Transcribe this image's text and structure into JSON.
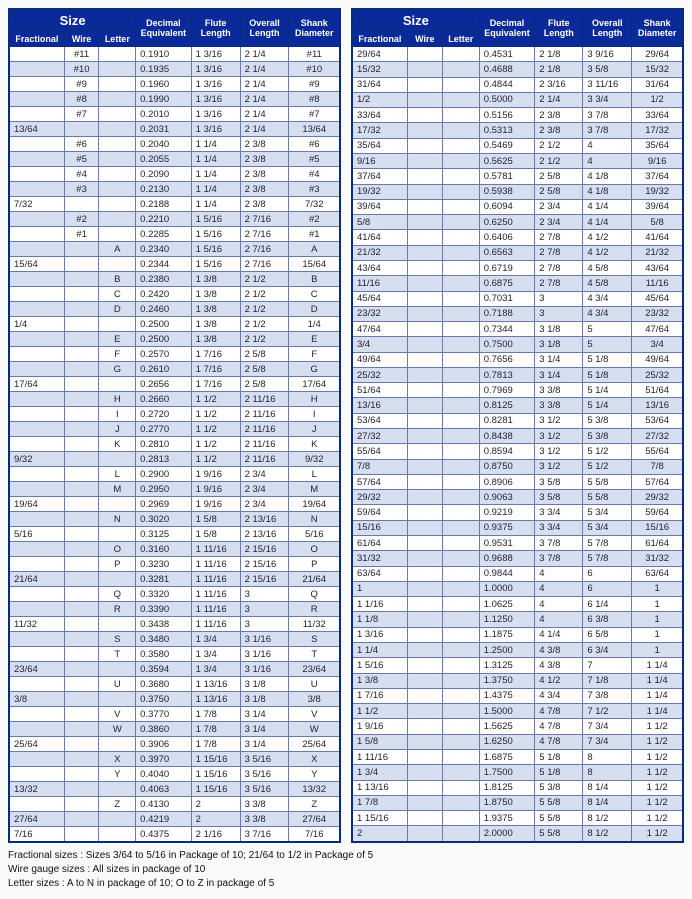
{
  "headers": {
    "size": "Size",
    "fractional": "Fractional",
    "wire": "Wire",
    "letter": "Letter",
    "decimal": "Decimal Equivalent",
    "flute": "Flute Length",
    "overall": "Overall Length",
    "shank": "Shank Diameter"
  },
  "footnotes": [
    "Fractional sizes : Sizes 3/64 to 5/16 in Package of 10; 21/64 to 1/2 in Package of 5",
    "Wire gauge sizes : All sizes in package of 10",
    "Letter sizes : A to N in package of 10; O to Z in package of 5"
  ],
  "left_rows": [
    {
      "frac": "",
      "wire": "#11",
      "let": "",
      "dec": "0.1910",
      "fl": "1 3/16",
      "ol": "2 1/4",
      "sh": "#11"
    },
    {
      "frac": "",
      "wire": "#10",
      "let": "",
      "dec": "0.1935",
      "fl": "1 3/16",
      "ol": "2 1/4",
      "sh": "#10"
    },
    {
      "frac": "",
      "wire": "#9",
      "let": "",
      "dec": "0.1960",
      "fl": "1 3/16",
      "ol": "2 1/4",
      "sh": "#9"
    },
    {
      "frac": "",
      "wire": "#8",
      "let": "",
      "dec": "0.1990",
      "fl": "1 3/16",
      "ol": "2 1/4",
      "sh": "#8"
    },
    {
      "frac": "",
      "wire": "#7",
      "let": "",
      "dec": "0.2010",
      "fl": "1 3/16",
      "ol": "2 1/4",
      "sh": "#7"
    },
    {
      "frac": "13/64",
      "wire": "",
      "let": "",
      "dec": "0.2031",
      "fl": "1 3/16",
      "ol": "2 1/4",
      "sh": "13/64"
    },
    {
      "frac": "",
      "wire": "#6",
      "let": "",
      "dec": "0.2040",
      "fl": "1 1/4",
      "ol": "2 3/8",
      "sh": "#6"
    },
    {
      "frac": "",
      "wire": "#5",
      "let": "",
      "dec": "0.2055",
      "fl": "1 1/4",
      "ol": "2 3/8",
      "sh": "#5"
    },
    {
      "frac": "",
      "wire": "#4",
      "let": "",
      "dec": "0.2090",
      "fl": "1 1/4",
      "ol": "2 3/8",
      "sh": "#4"
    },
    {
      "frac": "",
      "wire": "#3",
      "let": "",
      "dec": "0.2130",
      "fl": "1 1/4",
      "ol": "2 3/8",
      "sh": "#3"
    },
    {
      "frac": "7/32",
      "wire": "",
      "let": "",
      "dec": "0.2188",
      "fl": "1 1/4",
      "ol": "2 3/8",
      "sh": "7/32"
    },
    {
      "frac": "",
      "wire": "#2",
      "let": "",
      "dec": "0.2210",
      "fl": "1 5/16",
      "ol": "2 7/16",
      "sh": "#2"
    },
    {
      "frac": "",
      "wire": "#1",
      "let": "",
      "dec": "0.2285",
      "fl": "1 5/16",
      "ol": "2 7/16",
      "sh": "#1"
    },
    {
      "frac": "",
      "wire": "",
      "let": "A",
      "dec": "0.2340",
      "fl": "1 5/16",
      "ol": "2 7/16",
      "sh": "A"
    },
    {
      "frac": "15/64",
      "wire": "",
      "let": "",
      "dec": "0.2344",
      "fl": "1 5/16",
      "ol": "2 7/16",
      "sh": "15/64"
    },
    {
      "frac": "",
      "wire": "",
      "let": "B",
      "dec": "0.2380",
      "fl": "1 3/8",
      "ol": "2 1/2",
      "sh": "B"
    },
    {
      "frac": "",
      "wire": "",
      "let": "C",
      "dec": "0.2420",
      "fl": "1 3/8",
      "ol": "2 1/2",
      "sh": "C"
    },
    {
      "frac": "",
      "wire": "",
      "let": "D",
      "dec": "0.2460",
      "fl": "1 3/8",
      "ol": "2 1/2",
      "sh": "D"
    },
    {
      "frac": "1/4",
      "wire": "",
      "let": "",
      "dec": "0.2500",
      "fl": "1 3/8",
      "ol": "2 1/2",
      "sh": "1/4"
    },
    {
      "frac": "",
      "wire": "",
      "let": "E",
      "dec": "0.2500",
      "fl": "1 3/8",
      "ol": "2 1/2",
      "sh": "E"
    },
    {
      "frac": "",
      "wire": "",
      "let": "F",
      "dec": "0.2570",
      "fl": "1 7/16",
      "ol": "2 5/8",
      "sh": "F"
    },
    {
      "frac": "",
      "wire": "",
      "let": "G",
      "dec": "0.2610",
      "fl": "1 7/16",
      "ol": "2 5/8",
      "sh": "G"
    },
    {
      "frac": "17/64",
      "wire": "",
      "let": "",
      "dec": "0.2656",
      "fl": "1 7/16",
      "ol": "2 5/8",
      "sh": "17/64"
    },
    {
      "frac": "",
      "wire": "",
      "let": "H",
      "dec": "0.2660",
      "fl": "1 1/2",
      "ol": "2 11/16",
      "sh": "H"
    },
    {
      "frac": "",
      "wire": "",
      "let": "I",
      "dec": "0.2720",
      "fl": "1 1/2",
      "ol": "2 11/16",
      "sh": "I"
    },
    {
      "frac": "",
      "wire": "",
      "let": "J",
      "dec": "0.2770",
      "fl": "1 1/2",
      "ol": "2 11/16",
      "sh": "J"
    },
    {
      "frac": "",
      "wire": "",
      "let": "K",
      "dec": "0.2810",
      "fl": "1 1/2",
      "ol": "2 11/16",
      "sh": "K"
    },
    {
      "frac": "9/32",
      "wire": "",
      "let": "",
      "dec": "0.2813",
      "fl": "1 1/2",
      "ol": "2 11/16",
      "sh": "9/32"
    },
    {
      "frac": "",
      "wire": "",
      "let": "L",
      "dec": "0.2900",
      "fl": "1 9/16",
      "ol": "2 3/4",
      "sh": "L"
    },
    {
      "frac": "",
      "wire": "",
      "let": "M",
      "dec": "0.2950",
      "fl": "1 9/16",
      "ol": "2 3/4",
      "sh": "M"
    },
    {
      "frac": "19/64",
      "wire": "",
      "let": "",
      "dec": "0.2969",
      "fl": "1 9/16",
      "ol": "2 3/4",
      "sh": "19/64"
    },
    {
      "frac": "",
      "wire": "",
      "let": "N",
      "dec": "0.3020",
      "fl": "1 5/8",
      "ol": "2 13/16",
      "sh": "N"
    },
    {
      "frac": "5/16",
      "wire": "",
      "let": "",
      "dec": "0.3125",
      "fl": "1 5/8",
      "ol": "2 13/16",
      "sh": "5/16"
    },
    {
      "frac": "",
      "wire": "",
      "let": "O",
      "dec": "0.3160",
      "fl": "1 11/16",
      "ol": "2 15/16",
      "sh": "O"
    },
    {
      "frac": "",
      "wire": "",
      "let": "P",
      "dec": "0.3230",
      "fl": "1 11/16",
      "ol": "2 15/16",
      "sh": "P"
    },
    {
      "frac": "21/64",
      "wire": "",
      "let": "",
      "dec": "0.3281",
      "fl": "1 11/16",
      "ol": "2 15/16",
      "sh": "21/64"
    },
    {
      "frac": "",
      "wire": "",
      "let": "Q",
      "dec": "0.3320",
      "fl": "1 11/16",
      "ol": "3",
      "sh": "Q"
    },
    {
      "frac": "",
      "wire": "",
      "let": "R",
      "dec": "0.3390",
      "fl": "1 11/16",
      "ol": "3",
      "sh": "R"
    },
    {
      "frac": "11/32",
      "wire": "",
      "let": "",
      "dec": "0.3438",
      "fl": "1 11/16",
      "ol": "3",
      "sh": "11/32"
    },
    {
      "frac": "",
      "wire": "",
      "let": "S",
      "dec": "0.3480",
      "fl": "1 3/4",
      "ol": "3 1/16",
      "sh": "S"
    },
    {
      "frac": "",
      "wire": "",
      "let": "T",
      "dec": "0.3580",
      "fl": "1 3/4",
      "ol": "3 1/16",
      "sh": "T"
    },
    {
      "frac": "23/64",
      "wire": "",
      "let": "",
      "dec": "0.3594",
      "fl": "1 3/4",
      "ol": "3 1/16",
      "sh": "23/64"
    },
    {
      "frac": "",
      "wire": "",
      "let": "U",
      "dec": "0.3680",
      "fl": "1 13/16",
      "ol": "3 1/8",
      "sh": "U"
    },
    {
      "frac": "3/8",
      "wire": "",
      "let": "",
      "dec": "0.3750",
      "fl": "1 13/16",
      "ol": "3 1/8",
      "sh": "3/8"
    },
    {
      "frac": "",
      "wire": "",
      "let": "V",
      "dec": "0.3770",
      "fl": "1 7/8",
      "ol": "3 1/4",
      "sh": "V"
    },
    {
      "frac": "",
      "wire": "",
      "let": "W",
      "dec": "0.3860",
      "fl": "1 7/8",
      "ol": "3 1/4",
      "sh": "W"
    },
    {
      "frac": "25/64",
      "wire": "",
      "let": "",
      "dec": "0.3906",
      "fl": "1 7/8",
      "ol": "3 1/4",
      "sh": "25/64"
    },
    {
      "frac": "",
      "wire": "",
      "let": "X",
      "dec": "0.3970",
      "fl": "1 15/16",
      "ol": "3 5/16",
      "sh": "X"
    },
    {
      "frac": "",
      "wire": "",
      "let": "Y",
      "dec": "0.4040",
      "fl": "1 15/16",
      "ol": "3 5/16",
      "sh": "Y"
    },
    {
      "frac": "13/32",
      "wire": "",
      "let": "",
      "dec": "0.4063",
      "fl": "1 15/16",
      "ol": "3 5/16",
      "sh": "13/32"
    },
    {
      "frac": "",
      "wire": "",
      "let": "Z",
      "dec": "0.4130",
      "fl": "2",
      "ol": "3 3/8",
      "sh": "Z"
    },
    {
      "frac": "27/64",
      "wire": "",
      "let": "",
      "dec": "0.4219",
      "fl": "2",
      "ol": "3 3/8",
      "sh": "27/64"
    },
    {
      "frac": "7/16",
      "wire": "",
      "let": "",
      "dec": "0.4375",
      "fl": "2 1/16",
      "ol": "3 7/16",
      "sh": "7/16"
    }
  ],
  "right_rows": [
    {
      "frac": "29/64",
      "wire": "",
      "let": "",
      "dec": "0.4531",
      "fl": "2 1/8",
      "ol": "3 9/16",
      "sh": "29/64"
    },
    {
      "frac": "15/32",
      "wire": "",
      "let": "",
      "dec": "0.4688",
      "fl": "2 1/8",
      "ol": "3 5/8",
      "sh": "15/32"
    },
    {
      "frac": "31/64",
      "wire": "",
      "let": "",
      "dec": "0.4844",
      "fl": "2 3/16",
      "ol": "3 11/16",
      "sh": "31/64"
    },
    {
      "frac": "1/2",
      "wire": "",
      "let": "",
      "dec": "0.5000",
      "fl": "2 1/4",
      "ol": "3 3/4",
      "sh": "1/2"
    },
    {
      "frac": "33/64",
      "wire": "",
      "let": "",
      "dec": "0.5156",
      "fl": "2 3/8",
      "ol": "3 7/8",
      "sh": "33/64"
    },
    {
      "frac": "17/32",
      "wire": "",
      "let": "",
      "dec": "0.5313",
      "fl": "2 3/8",
      "ol": "3 7/8",
      "sh": "17/32"
    },
    {
      "frac": "35/64",
      "wire": "",
      "let": "",
      "dec": "0.5469",
      "fl": "2 1/2",
      "ol": "4",
      "sh": "35/64"
    },
    {
      "frac": "9/16",
      "wire": "",
      "let": "",
      "dec": "0.5625",
      "fl": "2 1/2",
      "ol": "4",
      "sh": "9/16"
    },
    {
      "frac": "37/64",
      "wire": "",
      "let": "",
      "dec": "0.5781",
      "fl": "2 5/8",
      "ol": "4 1/8",
      "sh": "37/64"
    },
    {
      "frac": "19/32",
      "wire": "",
      "let": "",
      "dec": "0.5938",
      "fl": "2 5/8",
      "ol": "4 1/8",
      "sh": "19/32"
    },
    {
      "frac": "39/64",
      "wire": "",
      "let": "",
      "dec": "0.6094",
      "fl": "2 3/4",
      "ol": "4 1/4",
      "sh": "39/64"
    },
    {
      "frac": "5/8",
      "wire": "",
      "let": "",
      "dec": "0.6250",
      "fl": "2 3/4",
      "ol": "4 1/4",
      "sh": "5/8"
    },
    {
      "frac": "41/64",
      "wire": "",
      "let": "",
      "dec": "0.6406",
      "fl": "2 7/8",
      "ol": "4 1/2",
      "sh": "41/64"
    },
    {
      "frac": "21/32",
      "wire": "",
      "let": "",
      "dec": "0.6563",
      "fl": "2 7/8",
      "ol": "4 1/2",
      "sh": "21/32"
    },
    {
      "frac": "43/64",
      "wire": "",
      "let": "",
      "dec": "0.6719",
      "fl": "2 7/8",
      "ol": "4 5/8",
      "sh": "43/64"
    },
    {
      "frac": "11/16",
      "wire": "",
      "let": "",
      "dec": "0.6875",
      "fl": "2 7/8",
      "ol": "4 5/8",
      "sh": "11/16"
    },
    {
      "frac": "45/64",
      "wire": "",
      "let": "",
      "dec": "0.7031",
      "fl": "3",
      "ol": "4 3/4",
      "sh": "45/64"
    },
    {
      "frac": "23/32",
      "wire": "",
      "let": "",
      "dec": "0.7188",
      "fl": "3",
      "ol": "4 3/4",
      "sh": "23/32"
    },
    {
      "frac": "47/64",
      "wire": "",
      "let": "",
      "dec": "0.7344",
      "fl": "3 1/8",
      "ol": "5",
      "sh": "47/64"
    },
    {
      "frac": "3/4",
      "wire": "",
      "let": "",
      "dec": "0.7500",
      "fl": "3 1/8",
      "ol": "5",
      "sh": "3/4"
    },
    {
      "frac": "49/64",
      "wire": "",
      "let": "",
      "dec": "0.7656",
      "fl": "3 1/4",
      "ol": "5 1/8",
      "sh": "49/64"
    },
    {
      "frac": "25/32",
      "wire": "",
      "let": "",
      "dec": "0.7813",
      "fl": "3 1/4",
      "ol": "5 1/8",
      "sh": "25/32"
    },
    {
      "frac": "51/64",
      "wire": "",
      "let": "",
      "dec": "0.7969",
      "fl": "3 3/8",
      "ol": "5 1/4",
      "sh": "51/64"
    },
    {
      "frac": "13/16",
      "wire": "",
      "let": "",
      "dec": "0.8125",
      "fl": "3 3/8",
      "ol": "5 1/4",
      "sh": "13/16"
    },
    {
      "frac": "53/64",
      "wire": "",
      "let": "",
      "dec": "0.8281",
      "fl": "3 1/2",
      "ol": "5 3/8",
      "sh": "53/64"
    },
    {
      "frac": "27/32",
      "wire": "",
      "let": "",
      "dec": "0.8438",
      "fl": "3 1/2",
      "ol": "5 3/8",
      "sh": "27/32"
    },
    {
      "frac": "55/64",
      "wire": "",
      "let": "",
      "dec": "0.8594",
      "fl": "3 1/2",
      "ol": "5 1/2",
      "sh": "55/64"
    },
    {
      "frac": "7/8",
      "wire": "",
      "let": "",
      "dec": "0.8750",
      "fl": "3 1/2",
      "ol": "5 1/2",
      "sh": "7/8"
    },
    {
      "frac": "57/64",
      "wire": "",
      "let": "",
      "dec": "0.8906",
      "fl": "3 5/8",
      "ol": "5 5/8",
      "sh": "57/64"
    },
    {
      "frac": "29/32",
      "wire": "",
      "let": "",
      "dec": "0.9063",
      "fl": "3 5/8",
      "ol": "5 5/8",
      "sh": "29/32"
    },
    {
      "frac": "59/64",
      "wire": "",
      "let": "",
      "dec": "0.9219",
      "fl": "3 3/4",
      "ol": "5 3/4",
      "sh": "59/64"
    },
    {
      "frac": "15/16",
      "wire": "",
      "let": "",
      "dec": "0.9375",
      "fl": "3 3/4",
      "ol": "5 3/4",
      "sh": "15/16"
    },
    {
      "frac": "61/64",
      "wire": "",
      "let": "",
      "dec": "0.9531",
      "fl": "3 7/8",
      "ol": "5 7/8",
      "sh": "61/64"
    },
    {
      "frac": "31/32",
      "wire": "",
      "let": "",
      "dec": "0.9688",
      "fl": "3 7/8",
      "ol": "5 7/8",
      "sh": "31/32"
    },
    {
      "frac": "63/64",
      "wire": "",
      "let": "",
      "dec": "0.9844",
      "fl": "4",
      "ol": "6",
      "sh": "63/64"
    },
    {
      "frac": "1",
      "wire": "",
      "let": "",
      "dec": "1.0000",
      "fl": "4",
      "ol": "6",
      "sh": "1"
    },
    {
      "frac": "1 1/16",
      "wire": "",
      "let": "",
      "dec": "1.0625",
      "fl": "4",
      "ol": "6 1/4",
      "sh": "1"
    },
    {
      "frac": "1 1/8",
      "wire": "",
      "let": "",
      "dec": "1.1250",
      "fl": "4",
      "ol": "6 3/8",
      "sh": "1"
    },
    {
      "frac": "1 3/16",
      "wire": "",
      "let": "",
      "dec": "1.1875",
      "fl": "4 1/4",
      "ol": "6 5/8",
      "sh": "1"
    },
    {
      "frac": "1 1/4",
      "wire": "",
      "let": "",
      "dec": "1.2500",
      "fl": "4 3/8",
      "ol": "6 3/4",
      "sh": "1"
    },
    {
      "frac": "1 5/16",
      "wire": "",
      "let": "",
      "dec": "1.3125",
      "fl": "4 3/8",
      "ol": "7",
      "sh": "1 1/4"
    },
    {
      "frac": "1 3/8",
      "wire": "",
      "let": "",
      "dec": "1.3750",
      "fl": "4 1/2",
      "ol": "7 1/8",
      "sh": "1 1/4"
    },
    {
      "frac": "1 7/16",
      "wire": "",
      "let": "",
      "dec": "1.4375",
      "fl": "4 3/4",
      "ol": "7 3/8",
      "sh": "1 1/4"
    },
    {
      "frac": "1 1/2",
      "wire": "",
      "let": "",
      "dec": "1.5000",
      "fl": "4 7/8",
      "ol": "7 1/2",
      "sh": "1 1/4"
    },
    {
      "frac": "1 9/16",
      "wire": "",
      "let": "",
      "dec": "1.5625",
      "fl": "4 7/8",
      "ol": "7 3/4",
      "sh": "1 1/2"
    },
    {
      "frac": "1 5/8",
      "wire": "",
      "let": "",
      "dec": "1.6250",
      "fl": "4 7/8",
      "ol": "7 3/4",
      "sh": "1 1/2"
    },
    {
      "frac": "1 11/16",
      "wire": "",
      "let": "",
      "dec": "1.6875",
      "fl": "5 1/8",
      "ol": "8",
      "sh": "1 1/2"
    },
    {
      "frac": "1 3/4",
      "wire": "",
      "let": "",
      "dec": "1.7500",
      "fl": "5 1/8",
      "ol": "8",
      "sh": "1 1/2"
    },
    {
      "frac": "1 13/16",
      "wire": "",
      "let": "",
      "dec": "1.8125",
      "fl": "5 3/8",
      "ol": "8 1/4",
      "sh": "1 1/2"
    },
    {
      "frac": "1 7/8",
      "wire": "",
      "let": "",
      "dec": "1.8750",
      "fl": "5 5/8",
      "ol": "8 1/4",
      "sh": "1 1/2"
    },
    {
      "frac": "1 15/16",
      "wire": "",
      "let": "",
      "dec": "1.9375",
      "fl": "5 5/8",
      "ol": "8 1/2",
      "sh": "1 1/2"
    },
    {
      "frac": "2",
      "wire": "",
      "let": "",
      "dec": "2.0000",
      "fl": "5 5/8",
      "ol": "8 1/2",
      "sh": "1 1/2"
    }
  ]
}
